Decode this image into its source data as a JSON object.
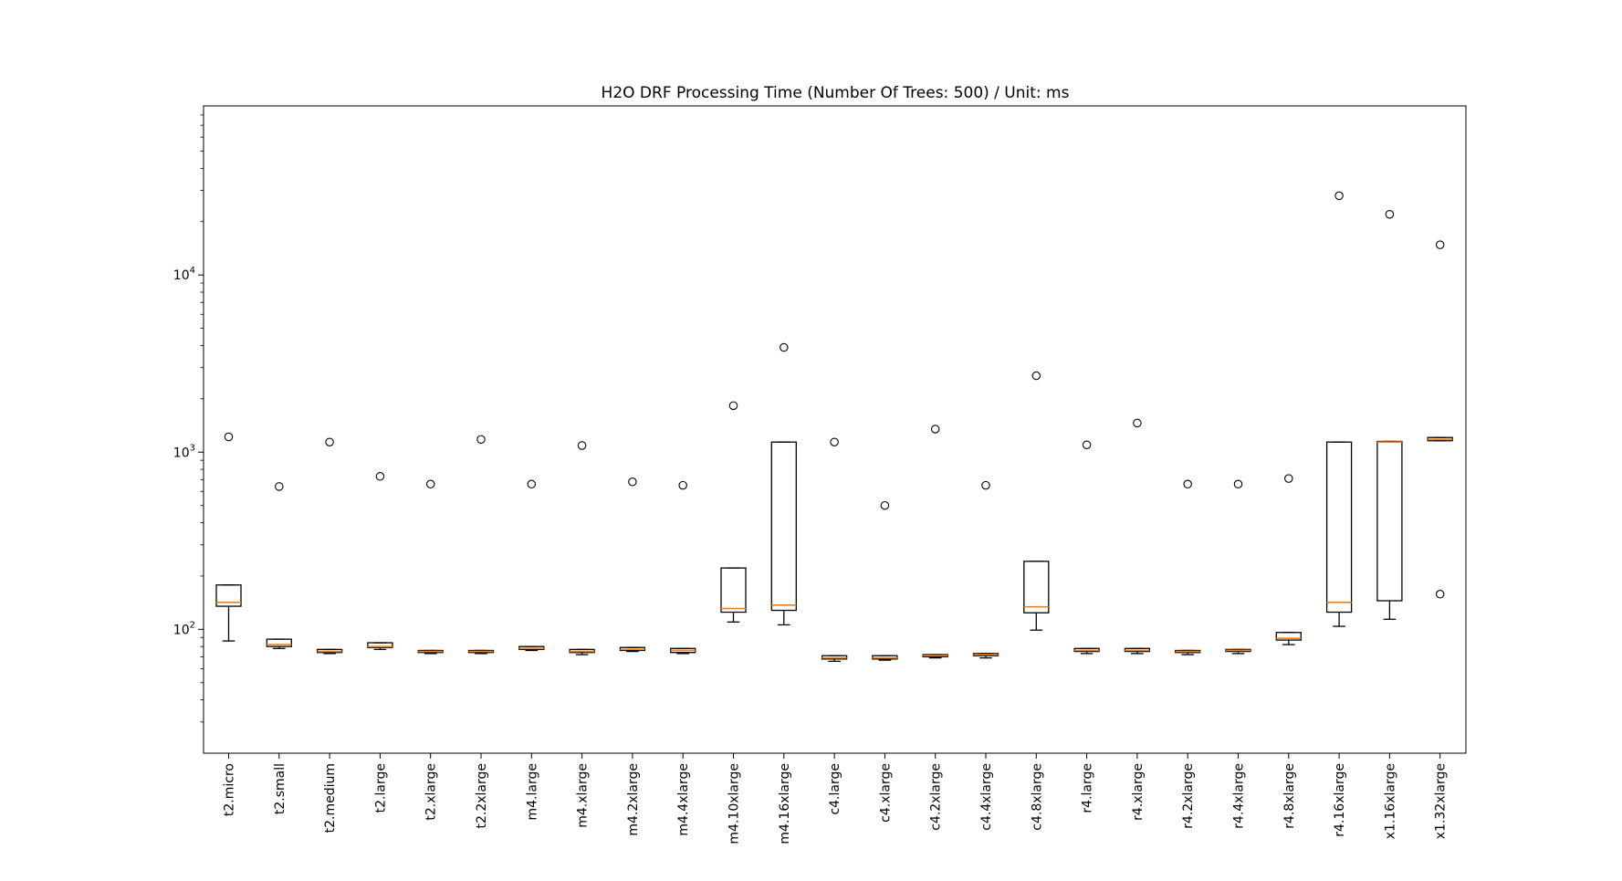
{
  "chart_data": {
    "type": "box",
    "title": "H2O DRF Processing Time (Number Of Trees: 500) / Unit: ms",
    "xlabel": "",
    "ylabel": "",
    "yscale": "log",
    "ylim": [
      20,
      90000
    ],
    "ytick_values": [
      100,
      1000,
      10000
    ],
    "ytick_labels": [
      {
        "base": "10",
        "exp": "2"
      },
      {
        "base": "10",
        "exp": "3"
      },
      {
        "base": "10",
        "exp": "4"
      }
    ],
    "box_color": "#000000",
    "median_color": "#ff7f0e",
    "categories": [
      "t2.micro",
      "t2.small",
      "t2.medium",
      "t2.large",
      "t2.xlarge",
      "t2.2xlarge",
      "m4.large",
      "m4.xlarge",
      "m4.2xlarge",
      "m4.4xlarge",
      "m4.10xlarge",
      "m4.16xlarge",
      "c4.large",
      "c4.xlarge",
      "c4.2xlarge",
      "c4.4xlarge",
      "c4.8xlarge",
      "r4.large",
      "r4.xlarge",
      "r4.2xlarge",
      "r4.4xlarge",
      "r4.8xlarge",
      "r4.16xlarge",
      "x1.16xlarge",
      "x1.32xlarge"
    ],
    "boxes": [
      {
        "whisker_low": 86,
        "q1": 135,
        "median": 142,
        "q3": 178,
        "whisker_high": 178,
        "fliers": [
          1220
        ]
      },
      {
        "whisker_low": 78,
        "q1": 80,
        "median": 82,
        "q3": 88,
        "whisker_high": 88,
        "fliers": [
          640
        ]
      },
      {
        "whisker_low": 73,
        "q1": 74,
        "median": 75,
        "q3": 77,
        "whisker_high": 77,
        "fliers": [
          1140
        ]
      },
      {
        "whisker_low": 77,
        "q1": 79,
        "median": 80,
        "q3": 84,
        "whisker_high": 84,
        "fliers": [
          730
        ]
      },
      {
        "whisker_low": 73,
        "q1": 74,
        "median": 75,
        "q3": 76,
        "whisker_high": 76,
        "fliers": [
          660
        ]
      },
      {
        "whisker_low": 73,
        "q1": 74,
        "median": 75,
        "q3": 76,
        "whisker_high": 76,
        "fliers": [
          1180
        ]
      },
      {
        "whisker_low": 76,
        "q1": 77,
        "median": 78,
        "q3": 80,
        "whisker_high": 80,
        "fliers": [
          660
        ]
      },
      {
        "whisker_low": 72,
        "q1": 74,
        "median": 75,
        "q3": 77,
        "whisker_high": 77,
        "fliers": [
          1090
        ]
      },
      {
        "whisker_low": 75,
        "q1": 76,
        "median": 77,
        "q3": 79,
        "whisker_high": 79,
        "fliers": [
          680
        ]
      },
      {
        "whisker_low": 73,
        "q1": 74,
        "median": 76,
        "q3": 78,
        "whisker_high": 78,
        "fliers": [
          650
        ]
      },
      {
        "whisker_low": 110,
        "q1": 125,
        "median": 131,
        "q3": 222,
        "whisker_high": 222,
        "fliers": [
          1830
        ]
      },
      {
        "whisker_low": 106,
        "q1": 128,
        "median": 137,
        "q3": 1140,
        "whisker_high": 1140,
        "fliers": [
          3900
        ]
      },
      {
        "whisker_low": 66,
        "q1": 68,
        "median": 69,
        "q3": 71,
        "whisker_high": 71,
        "fliers": [
          1140
        ]
      },
      {
        "whisker_low": 67,
        "q1": 68,
        "median": 69,
        "q3": 71,
        "whisker_high": 71,
        "fliers": [
          500
        ]
      },
      {
        "whisker_low": 69,
        "q1": 70,
        "median": 71,
        "q3": 72,
        "whisker_high": 72,
        "fliers": [
          1350
        ]
      },
      {
        "whisker_low": 69,
        "q1": 71,
        "median": 72,
        "q3": 73,
        "whisker_high": 73,
        "fliers": [
          650
        ]
      },
      {
        "whisker_low": 99,
        "q1": 124,
        "median": 134,
        "q3": 242,
        "whisker_high": 242,
        "fliers": [
          2700
        ]
      },
      {
        "whisker_low": 73,
        "q1": 75,
        "median": 76,
        "q3": 78,
        "whisker_high": 78,
        "fliers": [
          1100
        ]
      },
      {
        "whisker_low": 73,
        "q1": 75,
        "median": 76,
        "q3": 78,
        "whisker_high": 78,
        "fliers": [
          1460
        ]
      },
      {
        "whisker_low": 72,
        "q1": 74,
        "median": 75,
        "q3": 76,
        "whisker_high": 76,
        "fliers": [
          660
        ]
      },
      {
        "whisker_low": 73,
        "q1": 75,
        "median": 76,
        "q3": 77,
        "whisker_high": 77,
        "fliers": [
          660
        ]
      },
      {
        "whisker_low": 82,
        "q1": 87,
        "median": 89,
        "q3": 96,
        "whisker_high": 96,
        "fliers": [
          710
        ]
      },
      {
        "whisker_low": 104,
        "q1": 125,
        "median": 142,
        "q3": 1140,
        "whisker_high": 1140,
        "fliers": [
          28000
        ]
      },
      {
        "whisker_low": 114,
        "q1": 145,
        "median": 1140,
        "q3": 1150,
        "whisker_high": 1150,
        "fliers": [
          22000
        ]
      },
      {
        "whisker_low": 1160,
        "q1": 1160,
        "median": 1180,
        "q3": 1210,
        "whisker_high": 1210,
        "fliers": [
          14800,
          158
        ]
      }
    ]
  }
}
